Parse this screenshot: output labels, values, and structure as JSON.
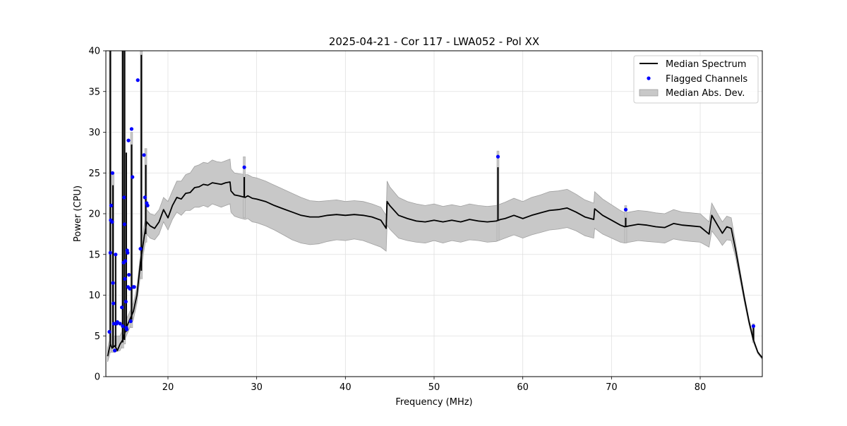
{
  "chart_data": {
    "type": "line",
    "title": "2025-04-21 - Cor 117 - LWA052 - Pol XX",
    "xlabel": "Frequency (MHz)",
    "ylabel": "Power (CPU)",
    "xlim": [
      13,
      87
    ],
    "ylim": [
      0,
      40
    ],
    "xticks": [
      20,
      30,
      40,
      50,
      60,
      70,
      80
    ],
    "yticks": [
      0,
      5,
      10,
      15,
      20,
      25,
      30,
      35,
      40
    ],
    "grid": true,
    "legend_position": "top-right",
    "legend": [
      "Median Spectrum",
      "Flagged Channels",
      "Median Abs. Dev."
    ],
    "colors": {
      "median": "#000000",
      "flagged": "#0000ff",
      "mad": "#c8c8c8",
      "mad_edge": "#a0a0a0"
    },
    "median_spectrum": [
      [
        13.2,
        2.5
      ],
      [
        13.5,
        4
      ],
      [
        13.7,
        3.5
      ],
      [
        14.0,
        3.8
      ],
      [
        14.3,
        3.2
      ],
      [
        14.6,
        4
      ],
      [
        14.9,
        4.5
      ],
      [
        15.3,
        6
      ],
      [
        15.7,
        7
      ],
      [
        16.1,
        8
      ],
      [
        16.5,
        10
      ],
      [
        16.9,
        14
      ],
      [
        17.3,
        17
      ],
      [
        17.6,
        19
      ],
      [
        18.0,
        18.5
      ],
      [
        18.5,
        18.2
      ],
      [
        19.0,
        19
      ],
      [
        19.5,
        20.5
      ],
      [
        20.0,
        19.5
      ],
      [
        20.5,
        21
      ],
      [
        21.0,
        22
      ],
      [
        21.5,
        21.8
      ],
      [
        22.0,
        22.5
      ],
      [
        22.5,
        22.6
      ],
      [
        23.0,
        23.2
      ],
      [
        23.5,
        23.3
      ],
      [
        24.0,
        23.6
      ],
      [
        24.5,
        23.5
      ],
      [
        25.0,
        23.8
      ],
      [
        25.5,
        23.7
      ],
      [
        26.0,
        23.6
      ],
      [
        26.5,
        23.8
      ],
      [
        27.0,
        23.9
      ],
      [
        27.1,
        22.8
      ],
      [
        27.5,
        22.3
      ],
      [
        28.0,
        22.2
      ],
      [
        28.7,
        22.0
      ],
      [
        29.0,
        22.2
      ],
      [
        29.5,
        21.9
      ],
      [
        30.0,
        21.8
      ],
      [
        31.0,
        21.5
      ],
      [
        32.0,
        21.0
      ],
      [
        33.0,
        20.6
      ],
      [
        34.0,
        20.2
      ],
      [
        35.0,
        19.8
      ],
      [
        36.0,
        19.6
      ],
      [
        37.0,
        19.6
      ],
      [
        38.0,
        19.8
      ],
      [
        39.0,
        19.9
      ],
      [
        40.0,
        19.8
      ],
      [
        41.0,
        19.9
      ],
      [
        42.0,
        19.8
      ],
      [
        43.0,
        19.6
      ],
      [
        44.0,
        19.2
      ],
      [
        44.6,
        18.2
      ],
      [
        44.7,
        21.5
      ],
      [
        45.0,
        21.0
      ],
      [
        46.0,
        19.8
      ],
      [
        47.0,
        19.4
      ],
      [
        48.0,
        19.1
      ],
      [
        49.0,
        19.0
      ],
      [
        50.0,
        19.2
      ],
      [
        51.0,
        19.0
      ],
      [
        52.0,
        19.2
      ],
      [
        53.0,
        19.0
      ],
      [
        54.0,
        19.3
      ],
      [
        55.0,
        19.1
      ],
      [
        56.0,
        19.0
      ],
      [
        57.0,
        19.1
      ],
      [
        57.5,
        19.3
      ],
      [
        58.0,
        19.4
      ],
      [
        59.0,
        19.8
      ],
      [
        60.0,
        19.4
      ],
      [
        61.0,
        19.8
      ],
      [
        62.0,
        20.1
      ],
      [
        63.0,
        20.4
      ],
      [
        64.0,
        20.5
      ],
      [
        65.0,
        20.7
      ],
      [
        66.0,
        20.2
      ],
      [
        67.0,
        19.6
      ],
      [
        68.0,
        19.3
      ],
      [
        68.1,
        20.6
      ],
      [
        69.0,
        19.8
      ],
      [
        70.0,
        19.2
      ],
      [
        71.0,
        18.6
      ],
      [
        71.5,
        18.4
      ],
      [
        72.0,
        18.5
      ],
      [
        73.0,
        18.7
      ],
      [
        74.0,
        18.6
      ],
      [
        75.0,
        18.4
      ],
      [
        76.0,
        18.3
      ],
      [
        77.0,
        18.8
      ],
      [
        78.0,
        18.6
      ],
      [
        79.0,
        18.5
      ],
      [
        80.0,
        18.4
      ],
      [
        81.0,
        17.5
      ],
      [
        81.3,
        19.8
      ],
      [
        82.0,
        18.5
      ],
      [
        82.5,
        17.6
      ],
      [
        83.0,
        18.4
      ],
      [
        83.5,
        18.2
      ],
      [
        84.0,
        15.5
      ],
      [
        84.5,
        12.5
      ],
      [
        85.0,
        9.5
      ],
      [
        85.5,
        6.8
      ],
      [
        86.0,
        4.5
      ],
      [
        86.5,
        3.0
      ],
      [
        87.0,
        2.3
      ]
    ],
    "mad_upper": [
      [
        13.2,
        3.5
      ],
      [
        13.5,
        5
      ],
      [
        14.0,
        5
      ],
      [
        14.6,
        5
      ],
      [
        15.3,
        7
      ],
      [
        16.1,
        9
      ],
      [
        16.5,
        11
      ],
      [
        16.9,
        15
      ],
      [
        17.3,
        18.5
      ],
      [
        17.6,
        20.5
      ],
      [
        18.0,
        20
      ],
      [
        18.5,
        19.8
      ],
      [
        19.0,
        20.5
      ],
      [
        19.5,
        22
      ],
      [
        20.0,
        21.5
      ],
      [
        20.5,
        22.8
      ],
      [
        21.0,
        24
      ],
      [
        21.5,
        24
      ],
      [
        22.0,
        24.8
      ],
      [
        22.5,
        25
      ],
      [
        23.0,
        25.8
      ],
      [
        23.5,
        26
      ],
      [
        24.0,
        26.3
      ],
      [
        24.5,
        26.2
      ],
      [
        25.0,
        26.6
      ],
      [
        25.5,
        26.4
      ],
      [
        26.0,
        26.3
      ],
      [
        26.5,
        26.5
      ],
      [
        27.0,
        26.7
      ],
      [
        27.1,
        25.5
      ],
      [
        27.5,
        25.0
      ],
      [
        28.0,
        24.9
      ],
      [
        28.7,
        24.8
      ],
      [
        29.0,
        24.8
      ],
      [
        29.5,
        24.5
      ],
      [
        30.0,
        24.4
      ],
      [
        31.0,
        24.0
      ],
      [
        32.0,
        23.5
      ],
      [
        33.0,
        23.0
      ],
      [
        34.0,
        22.5
      ],
      [
        35.0,
        22.0
      ],
      [
        36.0,
        21.6
      ],
      [
        37.0,
        21.5
      ],
      [
        38.0,
        21.6
      ],
      [
        39.0,
        21.7
      ],
      [
        40.0,
        21.5
      ],
      [
        41.0,
        21.6
      ],
      [
        42.0,
        21.5
      ],
      [
        43.0,
        21.2
      ],
      [
        44.0,
        20.8
      ],
      [
        44.6,
        19.8
      ],
      [
        44.7,
        24.0
      ],
      [
        45.0,
        23.3
      ],
      [
        46.0,
        22.0
      ],
      [
        47.0,
        21.5
      ],
      [
        48.0,
        21.2
      ],
      [
        49.0,
        21.0
      ],
      [
        50.0,
        21.2
      ],
      [
        51.0,
        20.9
      ],
      [
        52.0,
        21.1
      ],
      [
        53.0,
        20.9
      ],
      [
        54.0,
        21.2
      ],
      [
        55.0,
        21.0
      ],
      [
        56.0,
        20.9
      ],
      [
        57.0,
        21.0
      ],
      [
        57.5,
        21.2
      ],
      [
        58.0,
        21.4
      ],
      [
        59.0,
        21.9
      ],
      [
        60.0,
        21.5
      ],
      [
        61.0,
        22.0
      ],
      [
        62.0,
        22.3
      ],
      [
        63.0,
        22.7
      ],
      [
        64.0,
        22.8
      ],
      [
        65.0,
        23.0
      ],
      [
        66.0,
        22.4
      ],
      [
        67.0,
        21.7
      ],
      [
        68.0,
        21.3
      ],
      [
        68.1,
        22.7
      ],
      [
        69.0,
        21.8
      ],
      [
        70.0,
        21.1
      ],
      [
        71.0,
        20.4
      ],
      [
        71.5,
        20.1
      ],
      [
        72.0,
        20.2
      ],
      [
        73.0,
        20.4
      ],
      [
        74.0,
        20.3
      ],
      [
        75.0,
        20.1
      ],
      [
        76.0,
        20.0
      ],
      [
        77.0,
        20.5
      ],
      [
        78.0,
        20.2
      ],
      [
        79.0,
        20.1
      ],
      [
        80.0,
        20.0
      ],
      [
        81.0,
        19.0
      ],
      [
        81.3,
        21.3
      ],
      [
        82.0,
        19.9
      ],
      [
        82.5,
        19.0
      ],
      [
        83.0,
        19.7
      ],
      [
        83.5,
        19.5
      ],
      [
        84.0,
        16.3
      ],
      [
        84.5,
        13.0
      ],
      [
        85.0,
        9.9
      ],
      [
        85.5,
        7.1
      ],
      [
        86.0,
        4.7
      ],
      [
        86.5,
        3.1
      ],
      [
        87.0,
        2.4
      ]
    ],
    "mad_lower": [
      [
        13.2,
        1.8
      ],
      [
        13.5,
        3
      ],
      [
        14.0,
        3
      ],
      [
        14.6,
        3.2
      ],
      [
        15.3,
        5
      ],
      [
        16.1,
        7
      ],
      [
        16.5,
        9
      ],
      [
        16.9,
        12.5
      ],
      [
        17.3,
        15.5
      ],
      [
        17.6,
        17.5
      ],
      [
        18.0,
        17
      ],
      [
        18.5,
        16.8
      ],
      [
        19.0,
        17.5
      ],
      [
        19.5,
        19
      ],
      [
        20.0,
        18
      ],
      [
        20.5,
        19.3
      ],
      [
        21.0,
        20.2
      ],
      [
        21.5,
        19.8
      ],
      [
        22.0,
        20.4
      ],
      [
        22.5,
        20.4
      ],
      [
        23.0,
        20.8
      ],
      [
        23.5,
        20.8
      ],
      [
        24.0,
        21.0
      ],
      [
        24.5,
        20.8
      ],
      [
        25.0,
        21.2
      ],
      [
        25.5,
        21.0
      ],
      [
        26.0,
        20.8
      ],
      [
        26.5,
        21.0
      ],
      [
        27.0,
        21.2
      ],
      [
        27.1,
        20.2
      ],
      [
        27.5,
        19.7
      ],
      [
        28.0,
        19.5
      ],
      [
        28.7,
        19.3
      ],
      [
        29.0,
        19.4
      ],
      [
        29.5,
        19.0
      ],
      [
        30.0,
        18.9
      ],
      [
        31.0,
        18.5
      ],
      [
        32.0,
        18.0
      ],
      [
        33.0,
        17.4
      ],
      [
        34.0,
        16.8
      ],
      [
        35.0,
        16.4
      ],
      [
        36.0,
        16.2
      ],
      [
        37.0,
        16.3
      ],
      [
        38.0,
        16.6
      ],
      [
        39.0,
        16.8
      ],
      [
        40.0,
        16.7
      ],
      [
        41.0,
        16.9
      ],
      [
        42.0,
        16.7
      ],
      [
        43.0,
        16.3
      ],
      [
        44.0,
        15.9
      ],
      [
        44.6,
        15.4
      ],
      [
        44.7,
        18.6
      ],
      [
        45.0,
        18.1
      ],
      [
        46.0,
        17.0
      ],
      [
        47.0,
        16.7
      ],
      [
        48.0,
        16.5
      ],
      [
        49.0,
        16.4
      ],
      [
        50.0,
        16.7
      ],
      [
        51.0,
        16.4
      ],
      [
        52.0,
        16.7
      ],
      [
        53.0,
        16.5
      ],
      [
        54.0,
        16.8
      ],
      [
        55.0,
        16.7
      ],
      [
        56.0,
        16.5
      ],
      [
        57.0,
        16.6
      ],
      [
        57.5,
        16.8
      ],
      [
        58.0,
        17.0
      ],
      [
        59.0,
        17.4
      ],
      [
        60.0,
        17.0
      ],
      [
        61.0,
        17.4
      ],
      [
        62.0,
        17.7
      ],
      [
        63.0,
        18.0
      ],
      [
        64.0,
        18.1
      ],
      [
        65.0,
        18.3
      ],
      [
        66.0,
        17.9
      ],
      [
        67.0,
        17.3
      ],
      [
        68.0,
        17.0
      ],
      [
        68.1,
        18.2
      ],
      [
        69.0,
        17.5
      ],
      [
        70.0,
        17.0
      ],
      [
        71.0,
        16.5
      ],
      [
        71.5,
        16.4
      ],
      [
        72.0,
        16.5
      ],
      [
        73.0,
        16.7
      ],
      [
        74.0,
        16.6
      ],
      [
        75.0,
        16.5
      ],
      [
        76.0,
        16.4
      ],
      [
        77.0,
        16.9
      ],
      [
        78.0,
        16.7
      ],
      [
        79.0,
        16.6
      ],
      [
        80.0,
        16.5
      ],
      [
        81.0,
        15.9
      ],
      [
        81.3,
        17.9
      ],
      [
        82.0,
        16.9
      ],
      [
        82.5,
        16.1
      ],
      [
        83.0,
        16.8
      ],
      [
        83.5,
        16.7
      ],
      [
        84.0,
        14.6
      ],
      [
        84.5,
        11.8
      ],
      [
        85.0,
        9.0
      ],
      [
        85.5,
        6.4
      ],
      [
        86.0,
        4.2
      ],
      [
        86.5,
        2.8
      ],
      [
        87.0,
        2.1
      ]
    ],
    "median_spikes": [
      [
        13.5,
        4,
        40
      ],
      [
        13.8,
        3.5,
        23.5
      ],
      [
        14.1,
        3.7,
        15
      ],
      [
        14.9,
        4.2,
        40
      ],
      [
        15.1,
        4.5,
        40
      ],
      [
        15.3,
        5.5,
        27.5
      ],
      [
        15.9,
        7,
        28.5
      ],
      [
        17.0,
        13,
        39.5
      ],
      [
        17.5,
        17.5,
        26
      ],
      [
        28.6,
        22,
        24.5
      ],
      [
        57.2,
        19.2,
        25.7
      ],
      [
        71.6,
        18.4,
        19.5
      ],
      [
        86.0,
        4.5,
        6.2
      ]
    ],
    "mad_spikes": [
      [
        13.5,
        3,
        40
      ],
      [
        13.8,
        3,
        25
      ],
      [
        14.9,
        3.5,
        40
      ],
      [
        15.1,
        4,
        40
      ],
      [
        15.9,
        6,
        30
      ],
      [
        17.0,
        12,
        40
      ],
      [
        17.5,
        16.5,
        28
      ],
      [
        28.6,
        19.5,
        27
      ],
      [
        57.2,
        16.7,
        27.7
      ],
      [
        71.6,
        16.4,
        21
      ],
      [
        86.0,
        4.2,
        6.5
      ]
    ],
    "flagged_channels": [
      [
        13.4,
        5.5
      ],
      [
        13.5,
        15.2
      ],
      [
        13.55,
        19.2
      ],
      [
        13.6,
        21
      ],
      [
        13.7,
        19
      ],
      [
        13.75,
        25
      ],
      [
        13.8,
        11.5
      ],
      [
        13.85,
        9
      ],
      [
        13.9,
        6.5
      ],
      [
        14.0,
        3.2
      ],
      [
        14.1,
        15
      ],
      [
        14.2,
        6.5
      ],
      [
        14.3,
        6.7
      ],
      [
        14.6,
        6.5
      ],
      [
        14.8,
        8.5
      ],
      [
        14.9,
        6.2
      ],
      [
        15.0,
        14
      ],
      [
        15.05,
        22
      ],
      [
        15.1,
        18.7
      ],
      [
        15.15,
        12
      ],
      [
        15.2,
        14.2
      ],
      [
        15.25,
        9.2
      ],
      [
        15.3,
        6.0
      ],
      [
        15.35,
        5.8
      ],
      [
        15.4,
        15.5
      ],
      [
        15.45,
        15.2
      ],
      [
        15.5,
        11
      ],
      [
        15.55,
        29
      ],
      [
        15.6,
        12.5
      ],
      [
        15.7,
        10.8
      ],
      [
        15.8,
        6.8
      ],
      [
        15.9,
        30.4
      ],
      [
        16.0,
        24.5
      ],
      [
        16.1,
        11
      ],
      [
        16.2,
        11
      ],
      [
        16.6,
        36.4
      ],
      [
        16.9,
        15.7
      ],
      [
        17.3,
        27.2
      ],
      [
        17.4,
        22
      ],
      [
        17.6,
        21.3
      ],
      [
        17.7,
        21
      ],
      [
        28.6,
        25.7
      ],
      [
        57.2,
        27
      ],
      [
        71.6,
        20.5
      ],
      [
        86.0,
        6.2
      ]
    ]
  }
}
